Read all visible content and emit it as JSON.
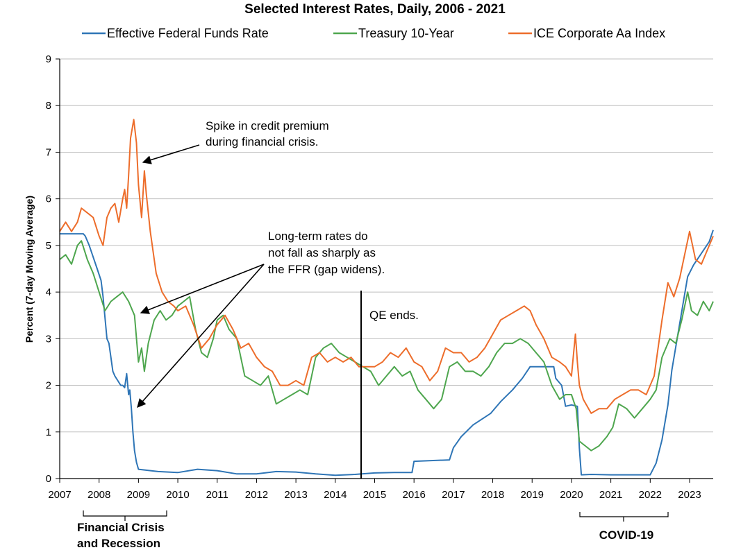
{
  "chart_data": {
    "type": "line",
    "title": "Selected Interest Rates, Daily, 2006 - 2021",
    "xlabel": "",
    "ylabel": "Percent (7-day Moving Average)",
    "xlim": [
      2007.0,
      2023.6
    ],
    "ylim": [
      0,
      9
    ],
    "y_ticks": [
      "0",
      "1",
      "2",
      "3",
      "4",
      "5",
      "6",
      "7",
      "8",
      "9"
    ],
    "x_ticks": [
      "2007",
      "2008",
      "2009",
      "2010",
      "2011",
      "2012",
      "2013",
      "2014",
      "2015",
      "2016",
      "2017",
      "2018",
      "2019",
      "2020",
      "2021",
      "2022",
      "2023"
    ],
    "grid": true,
    "legend_position": "top",
    "series": [
      {
        "name": "Effective Federal Funds Rate",
        "color": "#2e75b6",
        "x": [
          2007.0,
          2007.6,
          2007.65,
          2007.75,
          2007.85,
          2007.95,
          2008.05,
          2008.1,
          2008.2,
          2008.25,
          2008.35,
          2008.4,
          2008.55,
          2008.6,
          2008.65,
          2008.7,
          2008.75,
          2008.78,
          2008.82,
          2008.86,
          2008.9,
          2008.95,
          2009.0,
          2009.5,
          2010.0,
          2010.5,
          2011.0,
          2011.5,
          2012.0,
          2012.5,
          2013.0,
          2013.5,
          2014.0,
          2014.5,
          2015.0,
          2015.5,
          2015.95,
          2016.0,
          2016.9,
          2017.0,
          2017.2,
          2017.5,
          2017.95,
          2018.2,
          2018.5,
          2018.75,
          2018.95,
          2019.55,
          2019.6,
          2019.75,
          2019.85,
          2020.0,
          2020.15,
          2020.2,
          2020.25,
          2020.5,
          2021.0,
          2021.5,
          2022.0,
          2022.15,
          2022.3,
          2022.45,
          2022.55,
          2022.7,
          2022.85,
          2022.95,
          2023.1,
          2023.3,
          2023.5,
          2023.6
        ],
        "values": [
          5.25,
          5.25,
          5.2,
          5.0,
          4.75,
          4.5,
          4.25,
          3.9,
          3.0,
          2.9,
          2.3,
          2.2,
          2.0,
          2.0,
          1.95,
          2.25,
          1.8,
          1.9,
          1.5,
          1.0,
          0.6,
          0.35,
          0.2,
          0.15,
          0.13,
          0.2,
          0.17,
          0.1,
          0.1,
          0.15,
          0.14,
          0.1,
          0.07,
          0.09,
          0.12,
          0.13,
          0.13,
          0.37,
          0.4,
          0.66,
          0.9,
          1.15,
          1.4,
          1.65,
          1.9,
          2.15,
          2.4,
          2.4,
          2.15,
          2.0,
          1.55,
          1.58,
          1.55,
          0.65,
          0.08,
          0.09,
          0.08,
          0.08,
          0.08,
          0.33,
          0.83,
          1.58,
          2.33,
          3.08,
          3.83,
          4.33,
          4.58,
          4.83,
          5.08,
          5.33
        ]
      },
      {
        "name": "Treasury 10-Year",
        "color": "#4ea64e",
        "x": [
          2007.0,
          2007.15,
          2007.3,
          2007.45,
          2007.55,
          2007.7,
          2007.85,
          2008.0,
          2008.15,
          2008.3,
          2008.45,
          2008.6,
          2008.75,
          2008.9,
          2009.0,
          2009.08,
          2009.15,
          2009.25,
          2009.4,
          2009.55,
          2009.7,
          2009.85,
          2010.0,
          2010.15,
          2010.3,
          2010.45,
          2010.6,
          2010.75,
          2010.9,
          2011.0,
          2011.15,
          2011.3,
          2011.5,
          2011.7,
          2011.9,
          2012.1,
          2012.3,
          2012.5,
          2012.7,
          2012.9,
          2013.1,
          2013.3,
          2013.5,
          2013.7,
          2013.9,
          2014.1,
          2014.3,
          2014.5,
          2014.7,
          2014.9,
          2015.1,
          2015.3,
          2015.5,
          2015.7,
          2015.9,
          2016.1,
          2016.3,
          2016.5,
          2016.7,
          2016.9,
          2017.1,
          2017.3,
          2017.5,
          2017.7,
          2017.9,
          2018.1,
          2018.3,
          2018.5,
          2018.7,
          2018.9,
          2019.1,
          2019.3,
          2019.5,
          2019.7,
          2019.85,
          2020.0,
          2020.12,
          2020.2,
          2020.35,
          2020.5,
          2020.7,
          2020.9,
          2021.05,
          2021.2,
          2021.4,
          2021.6,
          2021.8,
          2022.0,
          2022.15,
          2022.3,
          2022.5,
          2022.65,
          2022.8,
          2022.95,
          2023.05,
          2023.2,
          2023.35,
          2023.5,
          2023.6
        ],
        "values": [
          4.7,
          4.8,
          4.6,
          5.0,
          5.1,
          4.7,
          4.4,
          4.0,
          3.6,
          3.8,
          3.9,
          4.0,
          3.8,
          3.5,
          2.5,
          2.8,
          2.3,
          2.9,
          3.4,
          3.6,
          3.4,
          3.5,
          3.7,
          3.8,
          3.9,
          3.2,
          2.7,
          2.6,
          3.0,
          3.4,
          3.5,
          3.2,
          3.0,
          2.2,
          2.1,
          2.0,
          2.2,
          1.6,
          1.7,
          1.8,
          1.9,
          1.8,
          2.6,
          2.8,
          2.9,
          2.7,
          2.6,
          2.5,
          2.4,
          2.3,
          2.0,
          2.2,
          2.4,
          2.2,
          2.3,
          1.9,
          1.7,
          1.5,
          1.7,
          2.4,
          2.5,
          2.3,
          2.3,
          2.2,
          2.4,
          2.7,
          2.9,
          2.9,
          3.0,
          2.9,
          2.7,
          2.5,
          2.0,
          1.7,
          1.8,
          1.8,
          1.5,
          0.8,
          0.7,
          0.6,
          0.7,
          0.9,
          1.1,
          1.6,
          1.5,
          1.3,
          1.5,
          1.7,
          1.9,
          2.6,
          3.0,
          2.9,
          3.4,
          4.0,
          3.6,
          3.5,
          3.8,
          3.6,
          3.8
        ]
      },
      {
        "name": "ICE Corporate Aa Index",
        "color": "#ed6d2b",
        "x": [
          2007.0,
          2007.15,
          2007.3,
          2007.45,
          2007.55,
          2007.7,
          2007.85,
          2008.0,
          2008.1,
          2008.2,
          2008.3,
          2008.4,
          2008.5,
          2008.6,
          2008.65,
          2008.7,
          2008.75,
          2008.8,
          2008.88,
          2008.95,
          2009.0,
          2009.08,
          2009.15,
          2009.2,
          2009.3,
          2009.45,
          2009.6,
          2009.75,
          2009.9,
          2010.0,
          2010.2,
          2010.4,
          2010.6,
          2010.8,
          2011.0,
          2011.2,
          2011.4,
          2011.6,
          2011.8,
          2012.0,
          2012.2,
          2012.4,
          2012.6,
          2012.8,
          2013.0,
          2013.2,
          2013.4,
          2013.6,
          2013.8,
          2014.0,
          2014.2,
          2014.4,
          2014.6,
          2014.8,
          2015.0,
          2015.2,
          2015.4,
          2015.6,
          2015.8,
          2016.0,
          2016.2,
          2016.4,
          2016.6,
          2016.8,
          2017.0,
          2017.2,
          2017.4,
          2017.6,
          2017.8,
          2018.0,
          2018.2,
          2018.4,
          2018.6,
          2018.8,
          2018.95,
          2019.1,
          2019.3,
          2019.5,
          2019.7,
          2019.85,
          2020.0,
          2020.1,
          2020.15,
          2020.2,
          2020.3,
          2020.5,
          2020.7,
          2020.9,
          2021.1,
          2021.3,
          2021.5,
          2021.7,
          2021.9,
          2022.1,
          2022.3,
          2022.45,
          2022.6,
          2022.75,
          2022.9,
          2023.0,
          2023.15,
          2023.3,
          2023.45,
          2023.6
        ],
        "values": [
          5.3,
          5.5,
          5.3,
          5.5,
          5.8,
          5.7,
          5.6,
          5.2,
          5.0,
          5.6,
          5.8,
          5.9,
          5.5,
          6.0,
          6.2,
          5.8,
          6.5,
          7.3,
          7.7,
          7.2,
          6.3,
          5.6,
          6.6,
          6.1,
          5.3,
          4.4,
          4.0,
          3.8,
          3.7,
          3.6,
          3.7,
          3.3,
          2.8,
          3.0,
          3.3,
          3.5,
          3.2,
          2.8,
          2.9,
          2.6,
          2.4,
          2.3,
          2.0,
          2.0,
          2.1,
          2.0,
          2.6,
          2.7,
          2.5,
          2.6,
          2.5,
          2.6,
          2.4,
          2.4,
          2.4,
          2.5,
          2.7,
          2.6,
          2.8,
          2.5,
          2.4,
          2.1,
          2.3,
          2.8,
          2.7,
          2.7,
          2.5,
          2.6,
          2.8,
          3.1,
          3.4,
          3.5,
          3.6,
          3.7,
          3.6,
          3.3,
          3.0,
          2.6,
          2.5,
          2.4,
          2.2,
          3.1,
          2.5,
          2.0,
          1.7,
          1.4,
          1.5,
          1.5,
          1.7,
          1.8,
          1.9,
          1.9,
          1.8,
          2.2,
          3.4,
          4.2,
          3.9,
          4.3,
          4.9,
          5.3,
          4.7,
          4.6,
          4.9,
          5.2
        ]
      }
    ],
    "annotations": {
      "credit_spike": [
        "Spike in credit premium",
        "during financial crisis."
      ],
      "long_term": [
        "Long-term rates do",
        "not fall as sharply as",
        "the FFR (gap widens)."
      ],
      "qe_ends": "QE ends."
    },
    "periods": {
      "financial_crisis": [
        "Financial Crisis",
        "and Recession"
      ],
      "covid": "COVID-19"
    }
  }
}
